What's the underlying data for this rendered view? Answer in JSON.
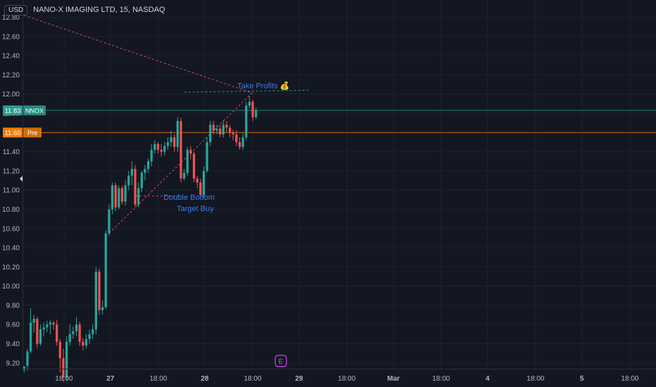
{
  "header": {
    "currency": "USD",
    "title": "NANO-X IMAGING LTD, 15, NASDAQ"
  },
  "colors": {
    "background": "#131722",
    "grid": "#1e222d",
    "text": "#b2b5be",
    "up": "#26a69a",
    "down": "#ef5350",
    "trendline": "#e0475b",
    "annotation": "#3d78e6",
    "last_price": "#2a9d8f",
    "pre_market": "#f57c00"
  },
  "chart_data": {
    "type": "candlestick",
    "title": "NANO-X IMAGING LTD, 15, NASDAQ",
    "ylim": [
      9.14,
      12.98
    ],
    "y_ticks": [
      9.2,
      9.4,
      9.6,
      9.8,
      10.0,
      10.2,
      10.4,
      10.6,
      10.8,
      11.0,
      11.2,
      11.4,
      11.6,
      11.8,
      12.0,
      12.2,
      12.4,
      12.6,
      12.8
    ],
    "x_ticks": [
      {
        "label": "18:00",
        "bar": 12.2
      },
      {
        "label": "27",
        "bar": 26.4
      },
      {
        "label": "18:00",
        "bar": 41.1
      },
      {
        "label": "28",
        "bar": 55.3
      },
      {
        "label": "18:00",
        "bar": 70.0
      },
      {
        "label": "29",
        "bar": 84.2
      },
      {
        "label": "18:00",
        "bar": 98.8
      },
      {
        "label": "Mar",
        "bar": 113.1
      },
      {
        "label": "18:00",
        "bar": 127.7
      },
      {
        "label": "4",
        "bar": 141.9
      },
      {
        "label": "18:00",
        "bar": 156.6
      },
      {
        "label": "5",
        "bar": 170.8
      },
      {
        "label": "18:00",
        "bar": 185.5
      }
    ],
    "bars_span": 194,
    "candles": [
      [
        9.13,
        9.16,
        9.1,
        9.17
      ],
      [
        9.17,
        9.32,
        9.12,
        9.35
      ],
      [
        9.32,
        9.62,
        9.3,
        9.77
      ],
      [
        9.62,
        9.66,
        9.52,
        9.7
      ],
      [
        9.66,
        9.4,
        9.35,
        9.68
      ],
      [
        9.4,
        9.55,
        9.38,
        9.6
      ],
      [
        9.55,
        9.57,
        9.48,
        9.62
      ],
      [
        9.57,
        9.6,
        9.52,
        9.64
      ],
      [
        9.6,
        9.62,
        9.5,
        9.65
      ],
      [
        9.62,
        9.6,
        9.55,
        9.64
      ],
      [
        9.6,
        9.42,
        9.38,
        9.65
      ],
      [
        9.42,
        9.25,
        9.1,
        9.45
      ],
      [
        9.25,
        9.05,
        9.0,
        9.35
      ],
      [
        9.05,
        9.42,
        9.02,
        9.48
      ],
      [
        9.42,
        9.5,
        9.38,
        9.6
      ],
      [
        9.5,
        9.53,
        9.45,
        9.58
      ],
      [
        9.53,
        9.6,
        9.48,
        9.68
      ],
      [
        9.6,
        9.42,
        9.38,
        9.63
      ],
      [
        9.42,
        9.38,
        9.33,
        9.46
      ],
      [
        9.38,
        9.45,
        9.35,
        9.5
      ],
      [
        9.45,
        9.5,
        9.4,
        9.55
      ],
      [
        9.5,
        9.55,
        9.45,
        9.6
      ],
      [
        9.55,
        10.15,
        9.5,
        10.2
      ],
      [
        10.15,
        9.75,
        9.7,
        10.18
      ],
      [
        9.75,
        9.78,
        9.7,
        9.85
      ],
      [
        9.78,
        10.55,
        9.76,
        10.58
      ],
      [
        10.55,
        10.8,
        10.52,
        10.85
      ],
      [
        10.8,
        11.05,
        10.75,
        11.08
      ],
      [
        11.05,
        10.82,
        10.78,
        11.08
      ],
      [
        10.82,
        11.02,
        10.8,
        11.05
      ],
      [
        11.02,
        10.88,
        10.85,
        11.05
      ],
      [
        10.88,
        11.05,
        10.84,
        11.1
      ],
      [
        11.05,
        11.15,
        11.0,
        11.2
      ],
      [
        11.15,
        11.22,
        11.05,
        11.3
      ],
      [
        11.22,
        10.85,
        10.82,
        11.26
      ],
      [
        10.85,
        11.02,
        10.82,
        11.08
      ],
      [
        11.02,
        11.18,
        10.98,
        11.2
      ],
      [
        11.18,
        11.22,
        11.1,
        11.26
      ],
      [
        11.22,
        11.3,
        11.18,
        11.33
      ],
      [
        11.3,
        11.42,
        11.25,
        11.48
      ],
      [
        11.42,
        11.48,
        11.38,
        11.52
      ],
      [
        11.48,
        11.42,
        11.38,
        11.5
      ],
      [
        11.42,
        11.4,
        11.35,
        11.48
      ],
      [
        11.4,
        11.46,
        11.36,
        11.5
      ],
      [
        11.46,
        11.5,
        11.42,
        11.55
      ],
      [
        11.5,
        11.55,
        11.45,
        11.62
      ],
      [
        11.55,
        11.45,
        11.4,
        11.58
      ],
      [
        11.45,
        11.72,
        11.4,
        11.76
      ],
      [
        11.72,
        11.12,
        11.08,
        11.75
      ],
      [
        11.12,
        11.18,
        11.1,
        11.22
      ],
      [
        11.18,
        11.42,
        11.15,
        11.45
      ],
      [
        11.42,
        11.38,
        11.32,
        11.46
      ],
      [
        11.38,
        11.12,
        11.08,
        11.4
      ],
      [
        11.12,
        11.08,
        11.02,
        11.15
      ],
      [
        11.08,
        10.95,
        10.92,
        11.12
      ],
      [
        10.95,
        11.2,
        10.92,
        11.25
      ],
      [
        11.2,
        11.5,
        11.18,
        11.55
      ],
      [
        11.5,
        11.68,
        11.46,
        11.72
      ],
      [
        11.68,
        11.62,
        11.58,
        11.72
      ],
      [
        11.62,
        11.64,
        11.58,
        11.68
      ],
      [
        11.64,
        11.58,
        11.55,
        11.68
      ],
      [
        11.58,
        11.68,
        11.55,
        11.73
      ],
      [
        11.68,
        11.65,
        11.6,
        11.72
      ],
      [
        11.65,
        11.6,
        11.55,
        11.68
      ],
      [
        11.6,
        11.58,
        11.52,
        11.63
      ],
      [
        11.58,
        11.5,
        11.46,
        11.62
      ],
      [
        11.5,
        11.45,
        11.42,
        11.55
      ],
      [
        11.45,
        11.55,
        11.42,
        11.6
      ],
      [
        11.55,
        11.88,
        11.52,
        11.92
      ],
      [
        11.88,
        11.92,
        11.85,
        11.98
      ],
      [
        11.92,
        11.76,
        11.72,
        11.94
      ],
      [
        11.76,
        11.83,
        11.74,
        11.86
      ]
    ],
    "trendlines": [
      {
        "from": [
          0,
          12.82
        ],
        "to": [
          70,
          12.01
        ]
      },
      {
        "from": [
          26,
          10.55
        ],
        "to": [
          70,
          12.02
        ]
      },
      {
        "from": [
          34,
          10.94
        ],
        "to": [
          48,
          10.94
        ]
      }
    ],
    "target_line": {
      "from": [
        49,
        12.02
      ],
      "to": [
        87,
        12.04
      ]
    },
    "annotations": [
      {
        "text": "Take Profits 💰",
        "bar": 73.3,
        "price": 12.06
      },
      {
        "text": "Double Bottom",
        "bar": 50.5,
        "price": 10.9
      },
      {
        "text": "Target Buy",
        "bar": 52.4,
        "price": 10.78
      }
    ],
    "price_lines": [
      {
        "label": "11.83",
        "tag": "NNOX",
        "price": 11.83,
        "color": "#2a9d8f"
      },
      {
        "label": "11.60",
        "tag": "Pre",
        "price": 11.6,
        "color": "#f57c00"
      }
    ],
    "event_marker": {
      "label": "E",
      "bar": 78.6
    }
  }
}
